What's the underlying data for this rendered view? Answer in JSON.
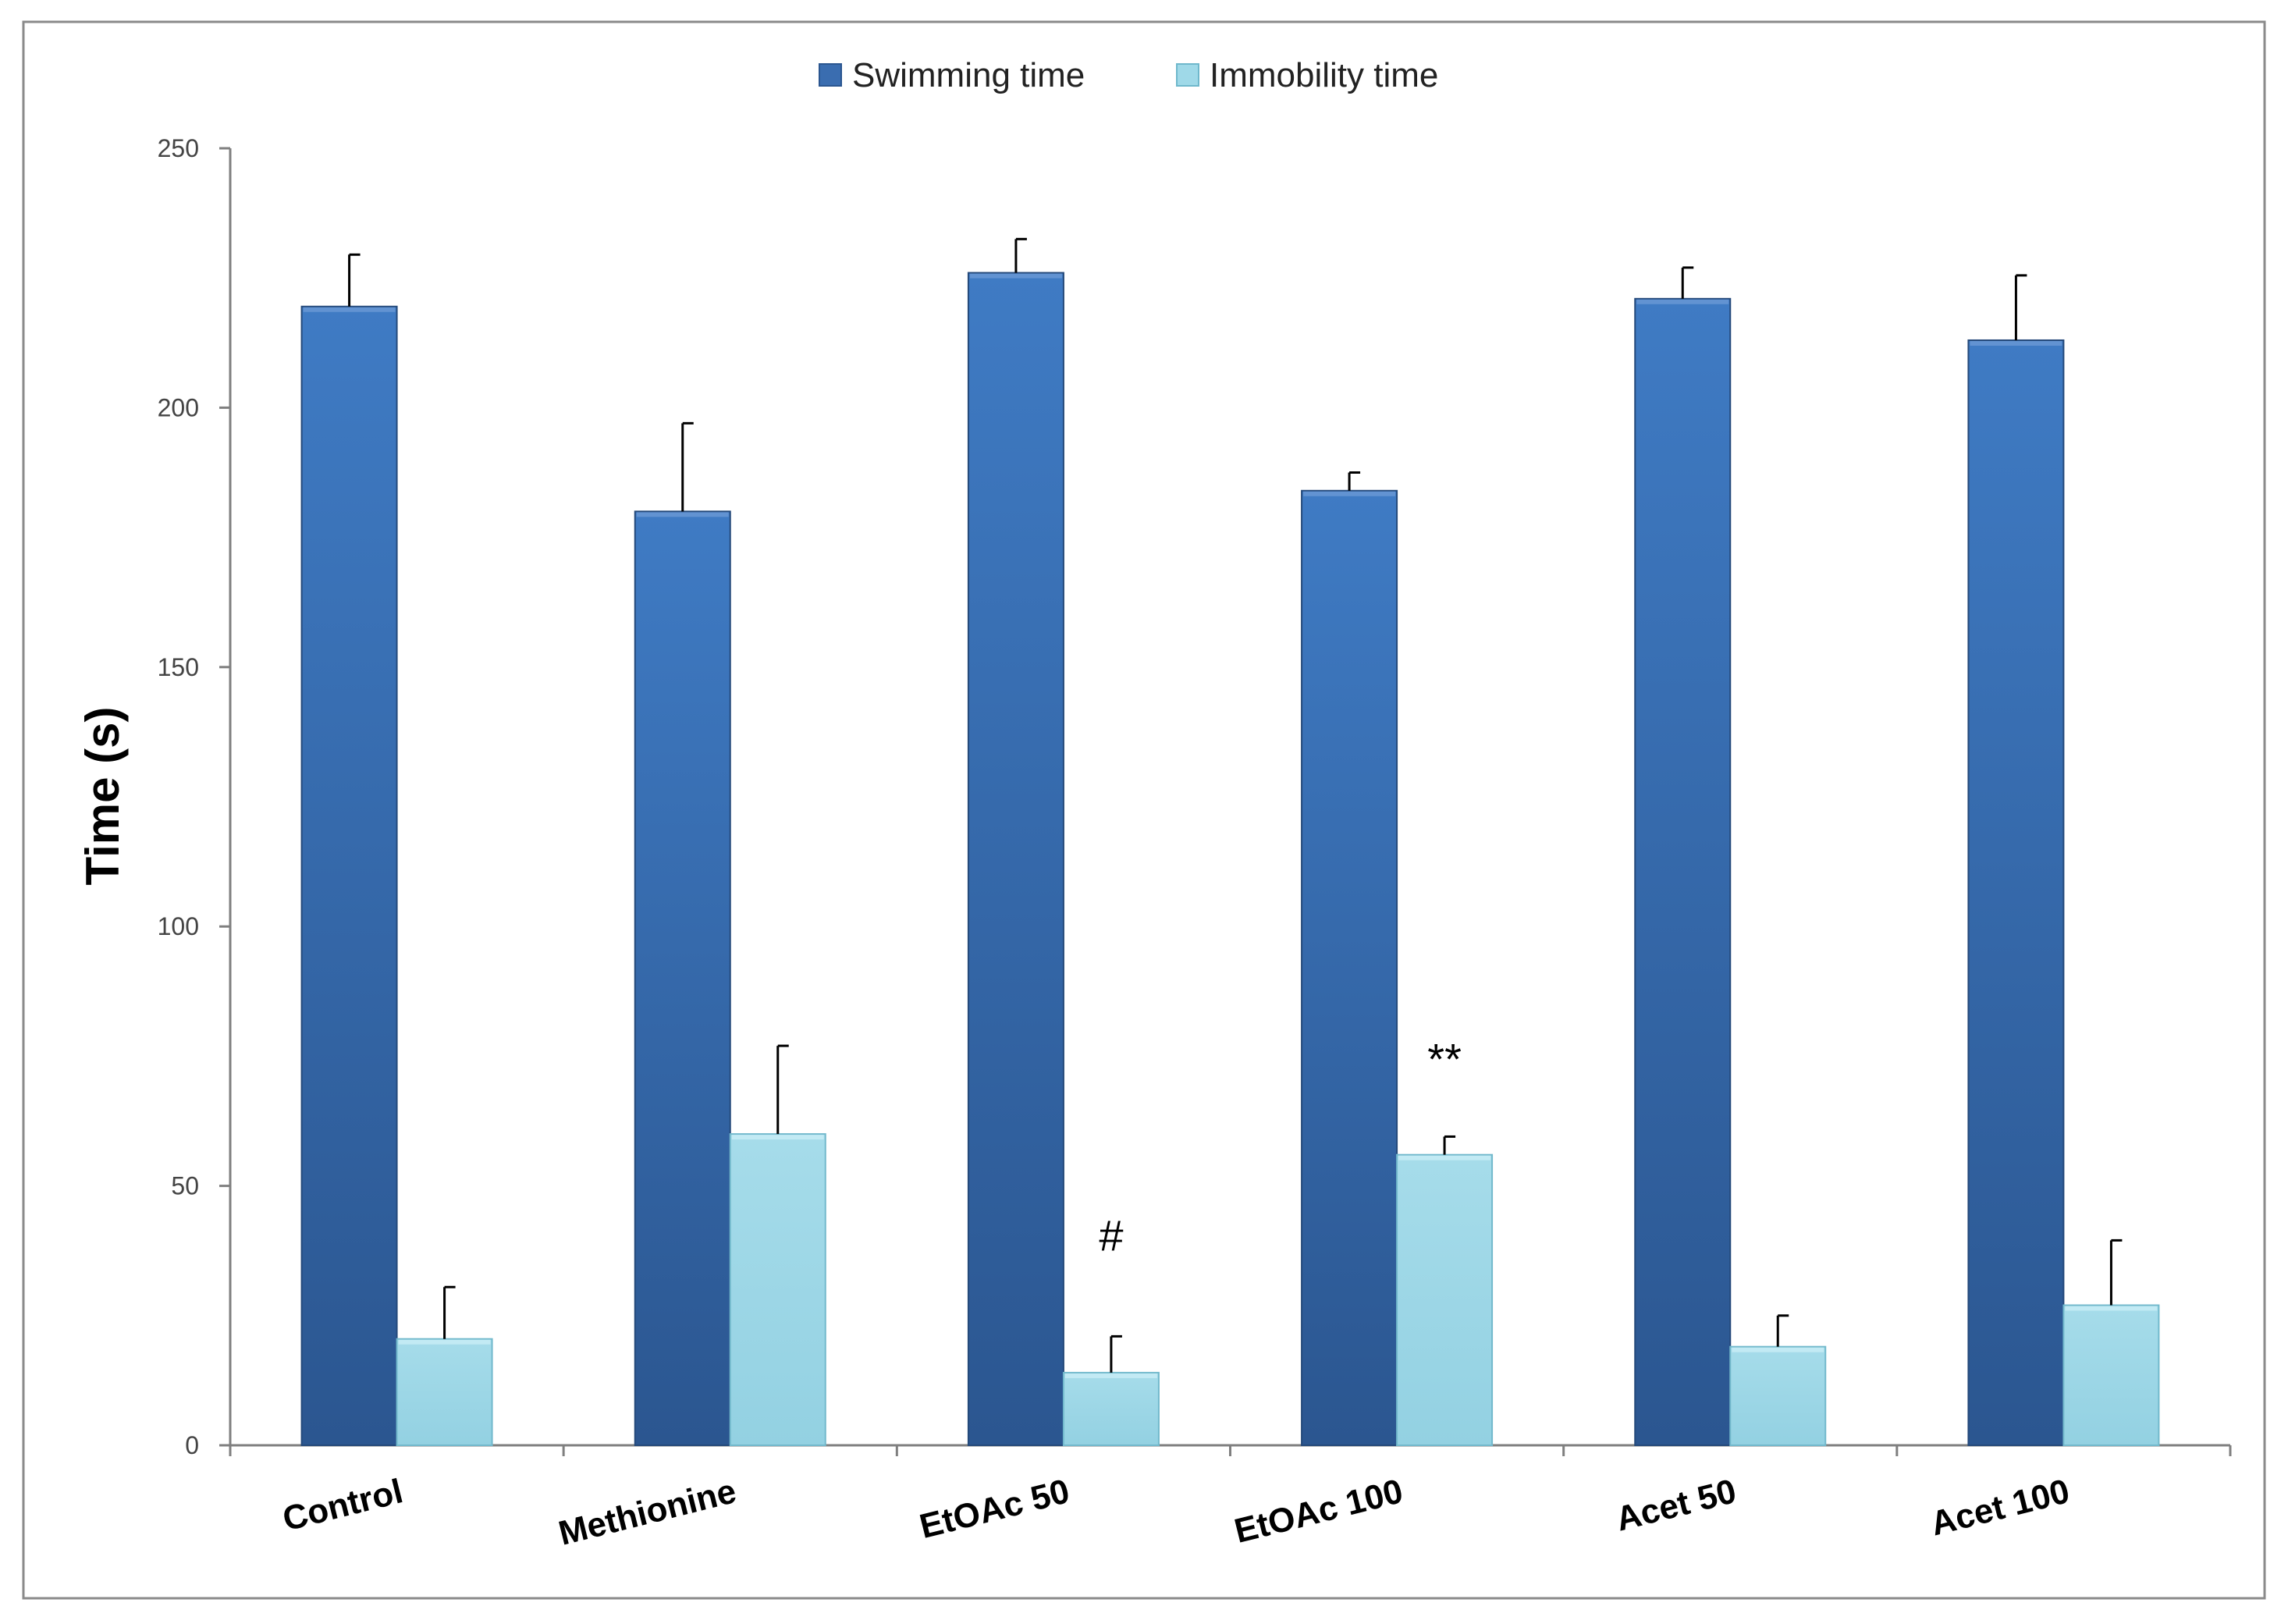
{
  "chart_data": {
    "type": "bar",
    "title": "",
    "xlabel": "",
    "ylabel": "Time (s)",
    "ylim": [
      0,
      250
    ],
    "yticks": [
      0,
      50,
      100,
      150,
      200,
      250
    ],
    "categories": [
      "Control",
      "Methionine",
      "EtOAc 50",
      "EtOAc 100",
      "Acet 50",
      "Acet 100"
    ],
    "series": [
      {
        "name": "Swimming time",
        "color": "#3a6db0",
        "values": [
          219.5,
          180,
          226,
          184,
          221,
          213
        ],
        "errors": [
          10,
          17,
          6.5,
          3.5,
          6,
          12.5
        ]
      },
      {
        "name": "Immobility time",
        "color": "#9fd9e8",
        "values": [
          20.5,
          60,
          14,
          56,
          19,
          27
        ],
        "errors": [
          10,
          17,
          7,
          3.5,
          6,
          12.5
        ]
      }
    ],
    "annotations": [
      {
        "category": "EtOAc 50",
        "series": "Immobility time",
        "text": "#"
      },
      {
        "category": "EtOAc 100",
        "series": "Immobility time",
        "text": "**"
      }
    ],
    "legend": "top-center",
    "grid": false
  }
}
